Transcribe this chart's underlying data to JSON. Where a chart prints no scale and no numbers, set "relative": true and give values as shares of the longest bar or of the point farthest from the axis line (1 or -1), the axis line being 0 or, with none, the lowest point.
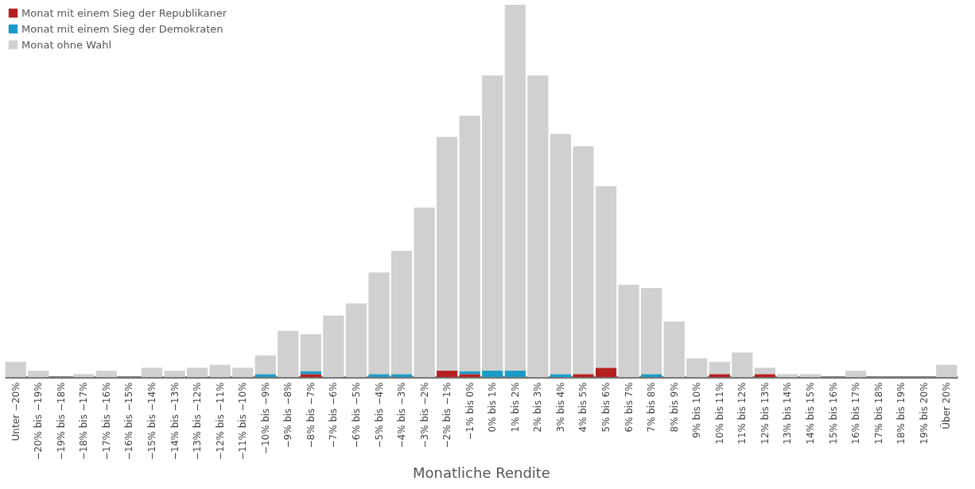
{
  "chart_data": {
    "type": "bar",
    "stacked": true,
    "relative": true,
    "xlabel": "Monatliche Rendite",
    "legend": "top left",
    "categories": [
      "Unter −20%",
      "−20% bis −19%",
      "−19% bis −18%",
      "−18% bis −17%",
      "−17% bis −16%",
      "−16% bis −15%",
      "−15% bis −14%",
      "−14% bis −13%",
      "−13% bis −12%",
      "−12% bis −11%",
      "−11% bis −10%",
      "−10% bis −9%",
      "−9% bis −8%",
      "−8% bis −7%",
      "−7% bis −6%",
      "−6% bis −5%",
      "−5% bis −4%",
      "−4% bis −3%",
      "−3% bis −2%",
      "−2% bis −1%",
      "−1% bis 0%",
      "0% bis 1%",
      "1% bis 2%",
      "2% bis 3%",
      "3% bis 4%",
      "4% bis 5%",
      "5% bis 6%",
      "6% bis 7%",
      "7% bis 8%",
      "8% bis 9%",
      "9% bis 10%",
      "10% bis 11%",
      "11% bis 12%",
      "12% bis 13%",
      "13% bis 14%",
      "14% bis 15%",
      "15% bis 16%",
      "16% bis 17%",
      "17% bis 18%",
      "18% bis 19%",
      "19% bis 20%",
      "Über 20%"
    ],
    "series": [
      {
        "name": "Monat mit einem Sieg der Republikaner",
        "color": "#b5201f",
        "values": [
          null,
          null,
          null,
          null,
          null,
          null,
          null,
          null,
          null,
          null,
          null,
          null,
          null,
          0.008,
          null,
          null,
          null,
          null,
          null,
          0.017,
          0.008,
          null,
          null,
          null,
          null,
          0.008,
          0.025,
          null,
          null,
          null,
          null,
          0.008,
          null,
          0.008,
          null,
          null,
          null,
          null,
          null,
          null,
          null,
          null
        ]
      },
      {
        "name": "Monat mit einem Sieg der Demokraten",
        "color": "#1a9bc7",
        "values": [
          null,
          null,
          null,
          null,
          null,
          null,
          null,
          null,
          null,
          null,
          null,
          0.008,
          null,
          0.008,
          null,
          null,
          0.008,
          0.008,
          null,
          null,
          0.008,
          0.017,
          0.017,
          null,
          0.008,
          null,
          null,
          null,
          0.008,
          null,
          null,
          null,
          null,
          null,
          null,
          null,
          null,
          null,
          null,
          null,
          null,
          null
        ]
      },
      {
        "name": "Monat ohne Wahl",
        "color": "#d0d0d0",
        "values": [
          0.041,
          0.017,
          0,
          0.008,
          0.017,
          0,
          0.025,
          0.017,
          0.025,
          0.033,
          0.025,
          0.05,
          0.124,
          0.099,
          0.165,
          0.198,
          0.273,
          0.331,
          0.455,
          0.628,
          0.686,
          0.793,
          0.983,
          0.81,
          0.645,
          0.612,
          0.488,
          0.248,
          0.231,
          0.149,
          0.05,
          0.033,
          0.066,
          0.017,
          0.008,
          0.008,
          0,
          0.017,
          0,
          0,
          0,
          0.033
        ]
      }
    ]
  }
}
